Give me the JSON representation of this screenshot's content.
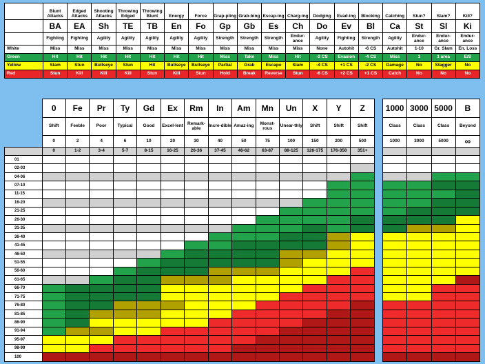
{
  "action_table": {
    "columns": [
      {
        "name": "Blunt Attacks",
        "abbr": "BA",
        "base": "Fighting",
        "white": "Miss",
        "green": "Hit",
        "yellow": "Slam",
        "red": "Stun"
      },
      {
        "name": "Edged Attacks",
        "abbr": "EA",
        "base": "Fighting",
        "white": "Miss",
        "green": "Hit",
        "yellow": "Stun",
        "red": "Kill"
      },
      {
        "name": "Shooting Attacks",
        "abbr": "Sh",
        "base": "Agility",
        "white": "Miss",
        "green": "Hit",
        "yellow": "Bullseye",
        "red": "Kill"
      },
      {
        "name": "Throwing Edged",
        "abbr": "TE",
        "base": "Agility",
        "white": "Miss",
        "green": "Hit",
        "yellow": "Stun",
        "red": "Kill"
      },
      {
        "name": "Throwing Blunt",
        "abbr": "TB",
        "base": "Agility",
        "white": "Miss",
        "green": "Hit",
        "yellow": "Hit",
        "red": "Stun"
      },
      {
        "name": "Energy",
        "abbr": "En",
        "base": "Agility",
        "white": "Miss",
        "green": "Hit",
        "yellow": "Bullseye",
        "red": "Kill"
      },
      {
        "name": "Force",
        "abbr": "Fo",
        "base": "Agility",
        "white": "Miss",
        "green": "Hit",
        "yellow": "Bullseye",
        "red": "Stun"
      },
      {
        "name": "Grap-pling",
        "abbr": "Gp",
        "base": "Strength",
        "white": "Miss",
        "green": "Miss",
        "yellow": "Partial",
        "red": "Hold"
      },
      {
        "name": "Grab-bing",
        "abbr": "Gb",
        "base": "Strength",
        "white": "Miss",
        "green": "Take",
        "yellow": "Grab",
        "red": "Break"
      },
      {
        "name": "Escap-ing",
        "abbr": "Es",
        "base": "Strength",
        "white": "Miss",
        "green": "Miss",
        "yellow": "Escape",
        "red": "Reverse"
      },
      {
        "name": "Charg-ing",
        "abbr": "Ch",
        "base": "Endur-ance",
        "white": "Miss",
        "green": "Hit",
        "yellow": "Slam",
        "red": "Stun"
      },
      {
        "name": "Dodging",
        "abbr": "Do",
        "base": "Agility",
        "white": "None",
        "green": "-2 CS",
        "yellow": "-4 CS",
        "red": "-6 CS"
      },
      {
        "name": "Evad-ing",
        "abbr": "Ev",
        "base": "Fighting",
        "white": "Autohit",
        "green": "Evasion",
        "yellow": "+1 CS",
        "red": "+2 CS"
      },
      {
        "name": "Blocking",
        "abbr": "Bl",
        "base": "Strength",
        "white": "-6 CS",
        "green": "-4 CS",
        "yellow": "-2 CS",
        "red": "+1 CS"
      },
      {
        "name": "Catching",
        "abbr": "Ca",
        "base": "Agility",
        "white": "Autohit",
        "green": "Miss",
        "yellow": "Damage",
        "red": "Catch"
      },
      {
        "name": "Stun?",
        "abbr": "St",
        "base": "Endur-ance",
        "white": "1-10",
        "green": "1",
        "yellow": "No",
        "red": "No"
      },
      {
        "name": "Slam?",
        "abbr": "Sl",
        "base": "Endur-ance",
        "white": "Gr. Slam",
        "green": "1 area",
        "yellow": "Stagger",
        "red": "No"
      },
      {
        "name": "Kill?",
        "abbr": "Ki",
        "base": "Endur-ance",
        "white": "En. Loss",
        "green": "E/S",
        "yellow": "No",
        "red": "No"
      }
    ],
    "row_labels": {
      "white": "White",
      "green": "Green",
      "yellow": "Yellow",
      "red": "Red"
    }
  },
  "ranks": [
    {
      "abbr": "0",
      "name": "Shift",
      "value": "0",
      "range": "0"
    },
    {
      "abbr": "Fe",
      "name": "Feeble",
      "value": "2",
      "range": "1-2"
    },
    {
      "abbr": "Pr",
      "name": "Poor",
      "value": "4",
      "range": "3-4"
    },
    {
      "abbr": "Ty",
      "name": "Typical",
      "value": "6",
      "range": "5-7"
    },
    {
      "abbr": "Gd",
      "name": "Good",
      "value": "10",
      "range": "8-15"
    },
    {
      "abbr": "Ex",
      "name": "Excel-lent",
      "value": "20",
      "range": "16-25"
    },
    {
      "abbr": "Rm",
      "name": "Remark-able",
      "value": "30",
      "range": "26-36"
    },
    {
      "abbr": "In",
      "name": "Incre-dible",
      "value": "40",
      "range": "37-45"
    },
    {
      "abbr": "Am",
      "name": "Amaz-ing",
      "value": "50",
      "range": "46-62"
    },
    {
      "abbr": "Mn",
      "name": "Monst-rous",
      "value": "75",
      "range": "63-87"
    },
    {
      "abbr": "Un",
      "name": "Unear-thly",
      "value": "100",
      "range": "88-125"
    },
    {
      "abbr": "X",
      "name": "Shift",
      "value": "150",
      "range": "126-175"
    },
    {
      "abbr": "Y",
      "name": "Shift",
      "value": "200",
      "range": "176-350"
    },
    {
      "abbr": "Z",
      "name": "Shift",
      "value": "500",
      "range": "351+"
    }
  ],
  "high_ranks": [
    {
      "abbr": "1000",
      "name": "Class",
      "value": "1000"
    },
    {
      "abbr": "3000",
      "name": "Class",
      "value": "3000"
    },
    {
      "abbr": "5000",
      "name": "Class",
      "value": "5000"
    },
    {
      "abbr": "B",
      "name": "Beyond",
      "value": "∞"
    }
  ],
  "roll_rows": [
    "01",
    "02-03",
    "04-06",
    "07-10",
    "11-15",
    "16-20",
    "21-25",
    "26-30",
    "31-35",
    "36-40",
    "41-45",
    "46-50",
    "51-55",
    "56-60",
    "61-65",
    "66-70",
    "71-75",
    "76-80",
    "81-85",
    "86-90",
    "91-94",
    "95-97",
    "98-99",
    "100"
  ],
  "main_grid": [
    "WWWWWWWWWWWWWW",
    "WWWWWWWWWWWWWG",
    "GGGGGGGGGGGGGg",
    "WWWWWWWWWWWWgg",
    "WWWWWWWWWWWWgg",
    "GGGGGGGGGGGggg",
    "WWWWWWWWWWgggg",
    "WWWWWWWWWggggd",
    "GGGGGGGGgggdgd",
    "WWWWWWWgggddoY",
    "WWWWWWggddddoY",
    "GGGGGgddddooYY",
    "WWWWgdddddoYYY",
    "WWWgdddoooYYYR",
    "GGgddoooYYYYRR",
    "gddddYYYYYYRRR",
    "gddddYYYYYRRRR",
    "gddoooYYYRRRRr",
    "gdoooYYYRRRRrr",
    "gdYYYYYRRRRrrr",
    "gooYYRRRRRrrrr",
    "YYYRRRRRRrrrrr",
    "YYRRRRRRrrrrrr",
    "rrrrrrrrrrrrrr"
  ],
  "high_grid": [
    "WWWW",
    "WWWW",
    "GGgg",
    "ggdd",
    "gggd",
    "ggdd",
    "gddd",
    "dddY",
    "dooY",
    "YYYY",
    "YYYY",
    "YYYY",
    "YYYY",
    "YYYY",
    "YYYr",
    "YYRR",
    "YYRR",
    "RRRR",
    "RRRR",
    "RRRR",
    "RRRR",
    "RRRR",
    "RRRR",
    "rrrr"
  ],
  "colors": {
    "white": "#ffffff",
    "gray": "#d0d0d0",
    "green": "#22a24a",
    "dark_green": "#157a36",
    "olive": "#b0a000",
    "yellow": "#ffff00",
    "red": "#ee2a2a",
    "dark_red": "#b01818",
    "background": "#7fbff0"
  }
}
